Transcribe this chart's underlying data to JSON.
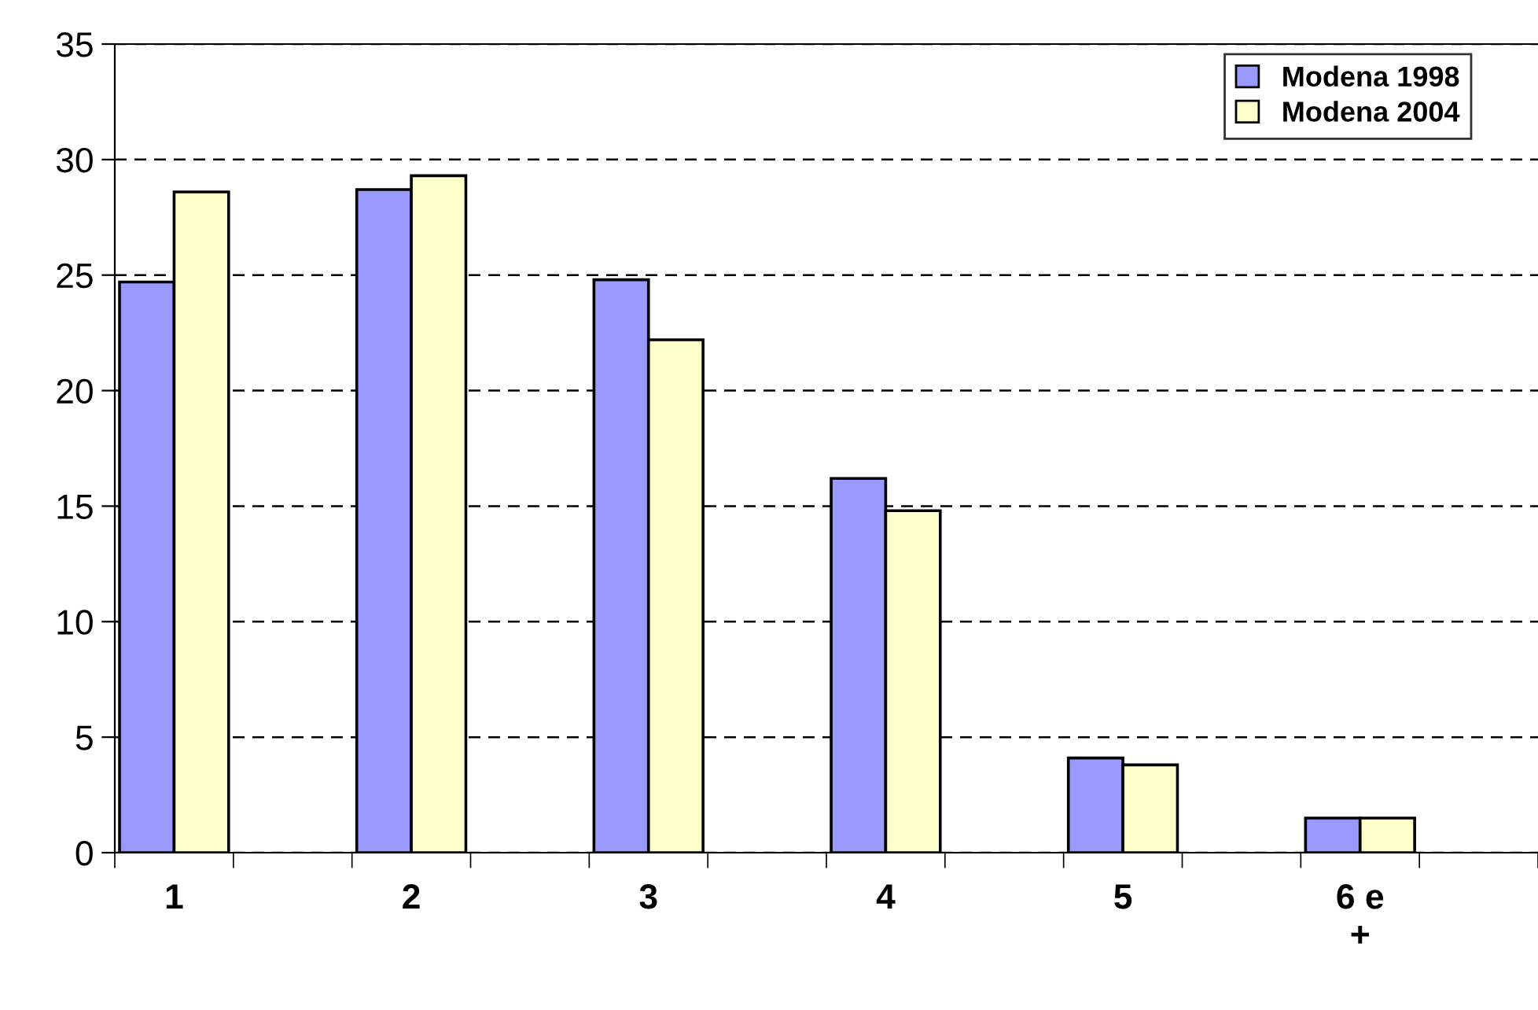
{
  "chart_data": {
    "type": "bar",
    "categories": [
      "1",
      "2",
      "3",
      "4",
      "5",
      "6 e\n+"
    ],
    "series": [
      {
        "name": "Modena 1998",
        "color": "#9999ff",
        "values": [
          24.7,
          28.7,
          24.8,
          16.2,
          4.1,
          1.5
        ]
      },
      {
        "name": "Modena 2004",
        "color": "#ffffcc",
        "values": [
          28.6,
          29.3,
          22.2,
          14.8,
          3.8,
          1.5
        ]
      }
    ],
    "ylim": [
      0,
      35
    ],
    "yticks": [
      0,
      5,
      10,
      15,
      20,
      25,
      30,
      35
    ],
    "grid": "y",
    "legend": "top right"
  }
}
